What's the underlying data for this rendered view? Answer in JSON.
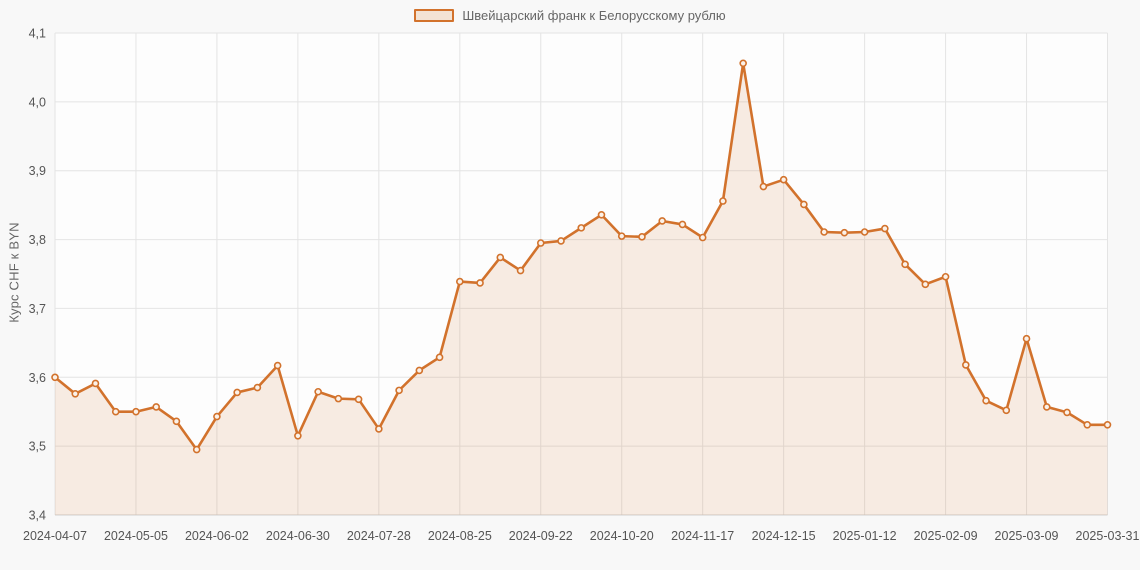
{
  "chart_data": {
    "type": "area",
    "series_name": "Швейцарский франк к Белорусскому рублю",
    "ylabel": "Курс CHF к BYN",
    "ylim": [
      3.4,
      4.1
    ],
    "ytick_step": 0.1,
    "ytick_labels": [
      "3,4",
      "3,5",
      "3,6",
      "3,7",
      "3,8",
      "3,9",
      "4,0",
      "4,1"
    ],
    "x": [
      "2024-04-07",
      "2024-04-14",
      "2024-04-21",
      "2024-04-28",
      "2024-05-05",
      "2024-05-12",
      "2024-05-19",
      "2024-05-26",
      "2024-06-02",
      "2024-06-09",
      "2024-06-16",
      "2024-06-23",
      "2024-06-30",
      "2024-07-07",
      "2024-07-14",
      "2024-07-21",
      "2024-07-28",
      "2024-08-04",
      "2024-08-11",
      "2024-08-18",
      "2024-08-25",
      "2024-09-01",
      "2024-09-08",
      "2024-09-15",
      "2024-09-22",
      "2024-09-29",
      "2024-10-06",
      "2024-10-13",
      "2024-10-20",
      "2024-10-27",
      "2024-11-03",
      "2024-11-10",
      "2024-11-17",
      "2024-11-24",
      "2024-12-01",
      "2024-12-08",
      "2024-12-15",
      "2024-12-22",
      "2024-12-29",
      "2025-01-05",
      "2025-01-12",
      "2025-01-19",
      "2025-01-26",
      "2025-02-02",
      "2025-02-09",
      "2025-02-16",
      "2025-02-23",
      "2025-03-02",
      "2025-03-09",
      "2025-03-16",
      "2025-03-23",
      "2025-03-30",
      "2025-03-31"
    ],
    "values": [
      3.6,
      3.576,
      3.591,
      3.55,
      3.55,
      3.557,
      3.536,
      3.495,
      3.543,
      3.578,
      3.585,
      3.617,
      3.515,
      3.579,
      3.569,
      3.568,
      3.525,
      3.581,
      3.61,
      3.629,
      3.739,
      3.737,
      3.774,
      3.755,
      3.795,
      3.798,
      3.817,
      3.836,
      3.805,
      3.804,
      3.827,
      3.822,
      3.803,
      3.856,
      4.056,
      3.877,
      3.887,
      3.851,
      3.811,
      3.81,
      3.811,
      3.816,
      3.764,
      3.735,
      3.746,
      3.618,
      3.566,
      3.552,
      3.656,
      3.557,
      3.549,
      3.531,
      3.531
    ],
    "xtick_indices": [
      0,
      4,
      8,
      12,
      16,
      20,
      24,
      28,
      32,
      36,
      40,
      44,
      48,
      52
    ],
    "xtick_labels": [
      "2024-04-07",
      "2024-05-05",
      "2024-06-02",
      "2024-06-30",
      "2024-07-28",
      "2024-08-25",
      "2024-09-22",
      "2024-10-20",
      "2024-11-17",
      "2024-12-15",
      "2025-01-12",
      "2025-02-09",
      "2025-03-09",
      "2025-03-31"
    ],
    "grid": true,
    "legend_position": "top",
    "colors": {
      "line": "#d2722c",
      "area_fill": "rgba(210, 114, 44, 0.13)",
      "marker_fill": "#fbf1e8",
      "grid": "#e4e4e4",
      "axis_line": "#cfcfcf",
      "plot_bg": "#fdfdfd",
      "page_bg": "#f8f8f8",
      "tick_text": "#555555",
      "legend_text": "#666666",
      "swatch_fill": "#f3e3d4"
    }
  }
}
